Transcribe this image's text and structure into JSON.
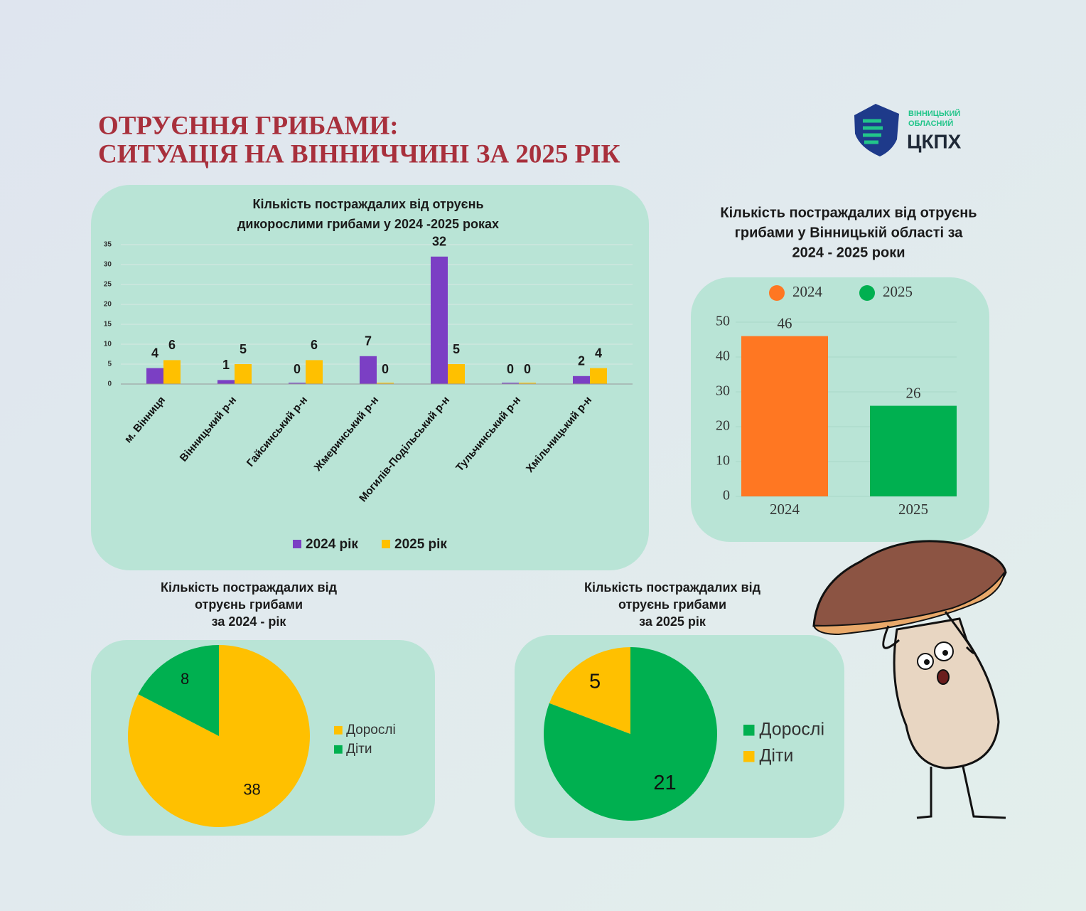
{
  "header": {
    "title": [
      "ОТРУЄННЯ ГРИБАМИ:",
      "СИТУАЦІЯ НА ВІННИЧЧИНІ ЗА 2025 РІК"
    ],
    "logo": [
      "ВІННИЦЬКИЙ",
      "ОБЛАСНИЙ",
      "ЦКПХ"
    ]
  },
  "chart_data": [
    {
      "type": "bar",
      "title": [
        "Кількість постраждалих від отруєнь",
        "дикорослими грибами у 2024 -2025 роках"
      ],
      "categories": [
        "м. Вінниця",
        "Вінницький р-н",
        "Гайсинський р-н",
        "Жмеринський р-н",
        "Могилів-Подільський р-н",
        "Тульчинський р-н",
        "Хмільницький р-н"
      ],
      "series": [
        {
          "name": "2024 рік",
          "color": "#7b3fc4",
          "values": [
            4,
            1,
            0,
            7,
            32,
            0,
            2
          ]
        },
        {
          "name": "2025 рік",
          "color": "#ffc000",
          "values": [
            6,
            5,
            6,
            0,
            5,
            0,
            4
          ]
        }
      ],
      "ylim": [
        0,
        35
      ],
      "yticks": [
        0,
        5,
        10,
        15,
        20,
        25,
        30,
        35
      ],
      "grid": true,
      "legend": "bottom"
    },
    {
      "type": "bar",
      "title": [
        "Кількість постраждалих від отруєнь",
        "грибами у Вінницькій області за",
        "2024 - 2025 роки"
      ],
      "categories": [
        "2024",
        "2025"
      ],
      "values": [
        46,
        26
      ],
      "colors": [
        "#ff7722",
        "#00b050"
      ],
      "ylim": [
        0,
        50
      ],
      "yticks": [
        0,
        10,
        20,
        30,
        40,
        50
      ],
      "grid": true,
      "legend": "top"
    },
    {
      "type": "pie",
      "title": [
        "Кількість постраждалих від",
        "отруєнь грибами",
        "за 2024 - рік"
      ],
      "categories": [
        "Дорослі",
        "Діти"
      ],
      "values": [
        38,
        8
      ],
      "colors": [
        "#ffc000",
        "#00b050"
      ],
      "legend": "right"
    },
    {
      "type": "pie",
      "title": [
        "Кількість постраждалих від",
        "отруєнь грибами",
        "за 2025 рік"
      ],
      "categories": [
        "Дорослі",
        "Діти"
      ],
      "values": [
        21,
        5
      ],
      "colors": [
        "#00b050",
        "#ffc000"
      ],
      "legend": "right"
    }
  ]
}
